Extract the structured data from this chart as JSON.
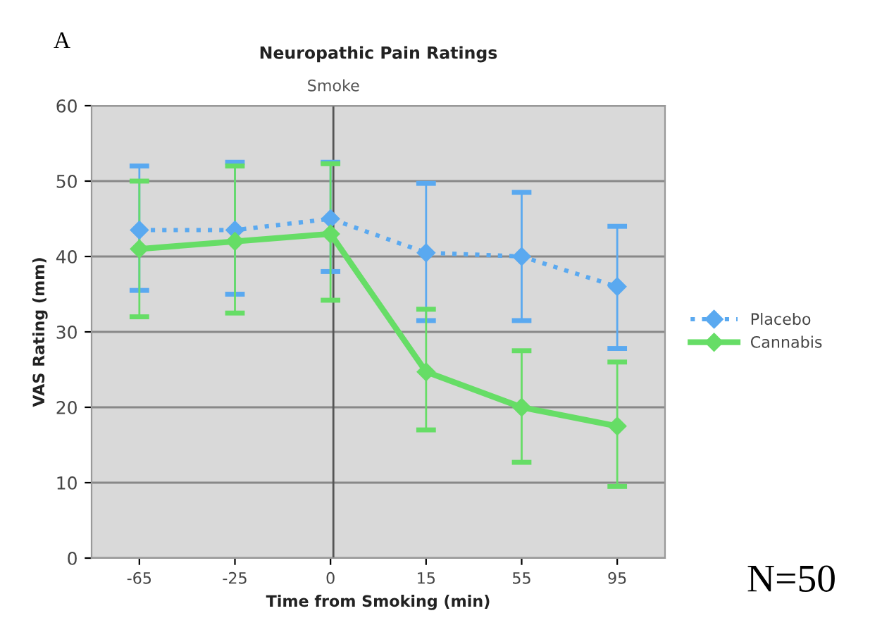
{
  "chart_data": {
    "type": "line",
    "title": "Neuropathic Pain Ratings",
    "xlabel": "Time from Smoking (min)",
    "ylabel": "VAS Rating (mm)",
    "categories": [
      "-65",
      "-25",
      "0",
      "15",
      "55",
      "95"
    ],
    "series": [
      {
        "name": "Placebo",
        "color": "#5aa9f0",
        "line_style": "dotted",
        "marker": "diamond",
        "values": [
          43.5,
          43.5,
          45,
          40.5,
          40,
          36
        ],
        "errors": [
          [
            35.5,
            52
          ],
          [
            35,
            52.5
          ],
          [
            38,
            52.5
          ],
          [
            31.5,
            49.7
          ],
          [
            31.5,
            48.5
          ],
          [
            27.8,
            44
          ]
        ]
      },
      {
        "name": "Cannabis",
        "color": "#66dd66",
        "line_style": "solid",
        "marker": "diamond",
        "values": [
          41,
          42,
          43,
          24.7,
          20,
          17.5
        ],
        "errors": [
          [
            32,
            50
          ],
          [
            32.5,
            52
          ],
          [
            34.2,
            52.3
          ],
          [
            17,
            33
          ],
          [
            12.7,
            27.5
          ],
          [
            9.5,
            26
          ]
        ]
      }
    ],
    "ylim": [
      0,
      60
    ],
    "yticks": [
      0,
      10,
      20,
      30,
      40,
      50,
      60
    ],
    "grid": "y",
    "legend": "right",
    "ref_lines": [
      {
        "axis": "x",
        "value": "0",
        "label": "Smoke",
        "color": "#555555"
      }
    ],
    "annotations": [
      "A",
      "N=50"
    ]
  }
}
